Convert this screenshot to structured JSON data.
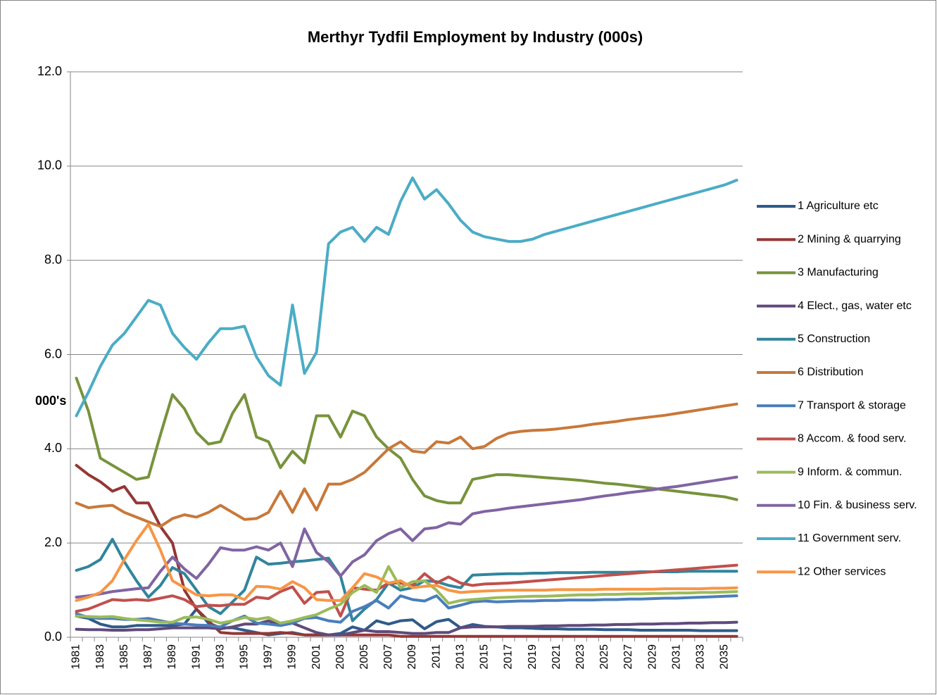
{
  "chart_data": {
    "type": "line",
    "title": "Merthyr Tydfil Employment by Industry (000s)",
    "y_label": "000's",
    "categories": [
      "1981",
      null,
      "1983",
      null,
      "1985",
      null,
      "1987",
      null,
      "1989",
      null,
      "1991",
      null,
      "1993",
      null,
      "1995",
      null,
      "1997",
      null,
      "1999",
      null,
      "2001",
      null,
      "2003",
      null,
      "2005",
      null,
      "2007",
      null,
      "2009",
      null,
      "2011",
      null,
      "2013",
      null,
      "2015",
      null,
      "2017",
      null,
      "2019",
      null,
      "2021",
      null,
      "2023",
      null,
      "2025",
      null,
      "2027",
      null,
      "2029",
      null,
      "2031",
      null,
      "2033",
      null,
      "2035",
      null
    ],
    "ylim": [
      0,
      12
    ],
    "yticks": [
      {
        "value": 0,
        "label": "0.0"
      },
      {
        "value": 2,
        "label": "2.0"
      },
      {
        "value": 4,
        "label": "4.0"
      },
      {
        "value": 6,
        "label": "6.0"
      },
      {
        "value": 8,
        "label": "8.0"
      },
      {
        "value": 10,
        "label": "10.0"
      },
      {
        "value": 12,
        "label": "12.0"
      }
    ],
    "grid": true,
    "legend": "right",
    "series": [
      {
        "name": "1 Agriculture etc",
        "color": "#2f5b8a",
        "values": [
          0.45,
          0.4,
          0.28,
          0.22,
          0.22,
          0.25,
          0.25,
          0.25,
          0.25,
          0.28,
          0.6,
          0.3,
          0.2,
          0.2,
          0.15,
          0.1,
          0.05,
          0.08,
          0.1,
          0.05,
          0.05,
          0.05,
          0.08,
          0.22,
          0.15,
          0.35,
          0.28,
          0.35,
          0.37,
          0.18,
          0.33,
          0.38,
          0.2,
          0.27,
          0.23,
          0.22,
          0.2,
          0.2,
          0.19,
          0.18,
          0.18,
          0.17,
          0.17,
          0.17,
          0.16,
          0.16,
          0.16,
          0.15,
          0.15,
          0.15,
          0.15,
          0.15,
          0.14,
          0.14,
          0.14,
          0.14
        ]
      },
      {
        "name": "2 Mining & quarrying",
        "color": "#953735",
        "values": [
          3.65,
          3.45,
          3.3,
          3.1,
          3.2,
          2.85,
          2.85,
          2.35,
          2.0,
          1.0,
          0.6,
          0.35,
          0.1,
          0.08,
          0.08,
          0.08,
          0.08,
          0.1,
          0.08,
          0.05,
          0.05,
          0.05,
          0.05,
          0.05,
          0.05,
          0.05,
          0.05,
          0.02,
          0.02,
          0.02,
          0.02,
          0.02,
          0.02,
          0.02,
          0.02,
          0.02,
          0.02,
          0.02,
          0.02,
          0.02,
          0.02,
          0.02,
          0.02,
          0.02,
          0.02,
          0.02,
          0.02,
          0.02,
          0.02,
          0.02,
          0.02,
          0.02,
          0.02,
          0.02,
          0.02,
          0.02
        ]
      },
      {
        "name": "3 Manufacturing",
        "color": "#77933c",
        "values": [
          5.5,
          4.8,
          3.8,
          3.65,
          3.5,
          3.35,
          3.4,
          4.3,
          5.15,
          4.85,
          4.35,
          4.1,
          4.15,
          4.75,
          5.15,
          4.25,
          4.15,
          3.6,
          3.95,
          3.7,
          4.7,
          4.7,
          4.25,
          4.8,
          4.7,
          4.25,
          4.0,
          3.8,
          3.35,
          3.0,
          2.9,
          2.85,
          2.85,
          3.35,
          3.4,
          3.45,
          3.45,
          3.43,
          3.41,
          3.39,
          3.37,
          3.35,
          3.33,
          3.3,
          3.27,
          3.25,
          3.22,
          3.19,
          3.16,
          3.13,
          3.1,
          3.07,
          3.04,
          3.01,
          2.98,
          2.92
        ]
      },
      {
        "name": "4 Elect., gas, water etc",
        "color": "#604a7b",
        "values": [
          0.17,
          0.16,
          0.16,
          0.15,
          0.15,
          0.16,
          0.16,
          0.18,
          0.2,
          0.2,
          0.2,
          0.2,
          0.18,
          0.22,
          0.28,
          0.28,
          0.35,
          0.25,
          0.3,
          0.2,
          0.1,
          0.05,
          0.05,
          0.1,
          0.15,
          0.12,
          0.12,
          0.1,
          0.08,
          0.08,
          0.1,
          0.1,
          0.2,
          0.22,
          0.22,
          0.22,
          0.23,
          0.23,
          0.23,
          0.24,
          0.24,
          0.25,
          0.25,
          0.26,
          0.26,
          0.27,
          0.27,
          0.28,
          0.28,
          0.29,
          0.29,
          0.3,
          0.3,
          0.31,
          0.31,
          0.32
        ]
      },
      {
        "name": "5 Construction",
        "color": "#31859c",
        "values": [
          1.42,
          1.5,
          1.65,
          2.08,
          1.6,
          1.2,
          0.85,
          1.1,
          1.48,
          1.35,
          1.0,
          0.65,
          0.5,
          0.75,
          1.0,
          1.7,
          1.55,
          1.57,
          1.6,
          1.62,
          1.65,
          1.68,
          1.3,
          0.35,
          0.6,
          0.8,
          1.15,
          1.0,
          1.05,
          1.2,
          1.18,
          1.1,
          1.05,
          1.32,
          1.33,
          1.34,
          1.35,
          1.35,
          1.36,
          1.36,
          1.37,
          1.37,
          1.37,
          1.38,
          1.38,
          1.38,
          1.38,
          1.39,
          1.39,
          1.39,
          1.39,
          1.4,
          1.4,
          1.4,
          1.4,
          1.4
        ]
      },
      {
        "name": "6 Distribution",
        "color": "#c8783a",
        "values": [
          2.85,
          2.75,
          2.78,
          2.8,
          2.65,
          2.55,
          2.45,
          2.35,
          2.52,
          2.6,
          2.55,
          2.65,
          2.8,
          2.65,
          2.5,
          2.52,
          2.65,
          3.1,
          2.65,
          3.15,
          2.7,
          3.25,
          3.25,
          3.35,
          3.5,
          3.75,
          4.0,
          4.15,
          3.95,
          3.92,
          4.15,
          4.12,
          4.25,
          4.0,
          4.05,
          4.22,
          4.33,
          4.37,
          4.39,
          4.4,
          4.42,
          4.45,
          4.48,
          4.52,
          4.55,
          4.58,
          4.62,
          4.65,
          4.68,
          4.71,
          4.75,
          4.79,
          4.83,
          4.87,
          4.91,
          4.95
        ]
      },
      {
        "name": "7 Transport & storage",
        "color": "#4a7ebb",
        "values": [
          0.5,
          0.42,
          0.4,
          0.4,
          0.38,
          0.38,
          0.4,
          0.35,
          0.3,
          0.28,
          0.26,
          0.25,
          0.22,
          0.35,
          0.45,
          0.3,
          0.28,
          0.25,
          0.3,
          0.4,
          0.42,
          0.35,
          0.32,
          0.55,
          0.65,
          0.78,
          0.62,
          0.88,
          0.8,
          0.77,
          0.88,
          0.62,
          0.68,
          0.75,
          0.77,
          0.75,
          0.76,
          0.77,
          0.77,
          0.78,
          0.78,
          0.79,
          0.79,
          0.79,
          0.8,
          0.8,
          0.81,
          0.81,
          0.82,
          0.83,
          0.83,
          0.84,
          0.85,
          0.86,
          0.87,
          0.88
        ]
      },
      {
        "name": "8 Accom. & food serv.",
        "color": "#c0504d",
        "values": [
          0.55,
          0.6,
          0.7,
          0.8,
          0.78,
          0.8,
          0.78,
          0.83,
          0.88,
          0.8,
          0.65,
          0.68,
          0.67,
          0.7,
          0.7,
          0.85,
          0.82,
          0.97,
          1.07,
          0.72,
          0.95,
          0.97,
          0.45,
          1.05,
          1.02,
          1.0,
          1.15,
          1.15,
          1.1,
          1.35,
          1.15,
          1.28,
          1.15,
          1.1,
          1.13,
          1.14,
          1.15,
          1.17,
          1.19,
          1.21,
          1.23,
          1.25,
          1.27,
          1.29,
          1.31,
          1.33,
          1.35,
          1.37,
          1.39,
          1.41,
          1.43,
          1.45,
          1.47,
          1.49,
          1.51,
          1.53
        ]
      },
      {
        "name": "9 Inform. & commun.",
        "color": "#9bbb59",
        "values": [
          0.45,
          0.44,
          0.43,
          0.44,
          0.4,
          0.37,
          0.35,
          0.32,
          0.32,
          0.42,
          0.43,
          0.38,
          0.3,
          0.35,
          0.42,
          0.38,
          0.42,
          0.3,
          0.35,
          0.42,
          0.48,
          0.6,
          0.7,
          0.95,
          1.1,
          0.95,
          1.5,
          1.05,
          1.18,
          1.2,
          1.0,
          0.72,
          0.78,
          0.8,
          0.82,
          0.84,
          0.85,
          0.86,
          0.87,
          0.87,
          0.88,
          0.89,
          0.9,
          0.9,
          0.91,
          0.91,
          0.92,
          0.92,
          0.93,
          0.93,
          0.94,
          0.94,
          0.95,
          0.95,
          0.96,
          0.97
        ]
      },
      {
        "name": "10 Fin. & business serv.",
        "color": "#8064a2",
        "values": [
          0.85,
          0.88,
          0.92,
          0.97,
          1.0,
          1.03,
          1.05,
          1.4,
          1.7,
          1.45,
          1.25,
          1.55,
          1.9,
          1.85,
          1.85,
          1.92,
          1.85,
          2.0,
          1.5,
          2.3,
          1.8,
          1.6,
          1.3,
          1.6,
          1.75,
          2.05,
          2.2,
          2.3,
          2.05,
          2.3,
          2.33,
          2.43,
          2.4,
          2.62,
          2.67,
          2.7,
          2.74,
          2.77,
          2.8,
          2.83,
          2.86,
          2.89,
          2.92,
          2.96,
          3.0,
          3.03,
          3.07,
          3.1,
          3.13,
          3.17,
          3.2,
          3.24,
          3.28,
          3.32,
          3.36,
          3.4
        ]
      },
      {
        "name": "11 Government serv.",
        "color": "#4bacc6",
        "values": [
          4.7,
          5.2,
          5.75,
          6.2,
          6.45,
          6.8,
          7.15,
          7.05,
          6.45,
          6.15,
          5.9,
          6.25,
          6.55,
          6.55,
          6.6,
          5.95,
          5.55,
          5.35,
          7.05,
          5.6,
          6.05,
          8.35,
          8.6,
          8.7,
          8.4,
          8.7,
          8.55,
          9.25,
          9.75,
          9.3,
          9.5,
          9.2,
          8.85,
          8.6,
          8.5,
          8.45,
          8.4,
          8.4,
          8.45,
          8.55,
          8.62,
          8.69,
          8.76,
          8.83,
          8.9,
          8.97,
          9.04,
          9.11,
          9.18,
          9.25,
          9.32,
          9.39,
          9.46,
          9.53,
          9.6,
          9.7
        ]
      },
      {
        "name": "12 Other services",
        "color": "#f79646",
        "values": [
          0.78,
          0.85,
          0.95,
          1.2,
          1.65,
          2.05,
          2.4,
          1.85,
          1.2,
          1.05,
          0.9,
          0.88,
          0.9,
          0.9,
          0.8,
          1.08,
          1.07,
          1.02,
          1.18,
          1.05,
          0.8,
          0.78,
          0.78,
          1.05,
          1.35,
          1.28,
          1.15,
          1.2,
          1.05,
          1.08,
          1.1,
          1.0,
          0.95,
          0.97,
          0.98,
          0.99,
          1.0,
          1.0,
          1.0,
          1.0,
          1.01,
          1.01,
          1.01,
          1.01,
          1.02,
          1.02,
          1.02,
          1.02,
          1.02,
          1.03,
          1.03,
          1.03,
          1.03,
          1.04,
          1.04,
          1.05
        ]
      }
    ]
  }
}
